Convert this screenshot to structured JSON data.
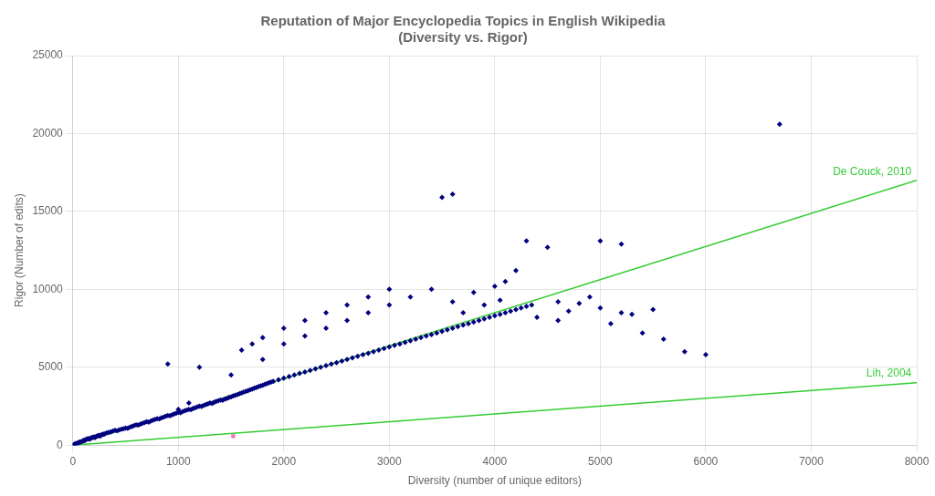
{
  "chart_data": {
    "type": "scatter",
    "title": "Reputation of Major Encyclopedia Topics in English Wikipedia\n(Diversity vs. Rigor)",
    "xlabel": "Diversity (number of unique editors)",
    "ylabel": "Rigor (Number of edits)",
    "xlim": [
      0,
      8000
    ],
    "ylim": [
      0,
      25000
    ],
    "xticks": [
      0,
      1000,
      2000,
      3000,
      4000,
      5000,
      6000,
      7000,
      8000
    ],
    "yticks": [
      0,
      5000,
      10000,
      15000,
      20000,
      25000
    ],
    "grid": true,
    "series": [
      {
        "type": "scatter",
        "color": "#000080",
        "marker": "diamond",
        "values": [
          [
            5,
            10
          ],
          [
            8,
            20
          ],
          [
            12,
            30
          ],
          [
            15,
            50
          ],
          [
            20,
            60
          ],
          [
            25,
            80
          ],
          [
            30,
            100
          ],
          [
            35,
            90
          ],
          [
            40,
            120
          ],
          [
            50,
            150
          ],
          [
            55,
            130
          ],
          [
            60,
            180
          ],
          [
            70,
            200
          ],
          [
            80,
            220
          ],
          [
            90,
            250
          ],
          [
            100,
            300
          ],
          [
            110,
            280
          ],
          [
            120,
            350
          ],
          [
            130,
            380
          ],
          [
            140,
            400
          ],
          [
            150,
            420
          ],
          [
            160,
            380
          ],
          [
            170,
            450
          ],
          [
            180,
            480
          ],
          [
            190,
            500
          ],
          [
            200,
            520
          ],
          [
            210,
            480
          ],
          [
            220,
            550
          ],
          [
            230,
            580
          ],
          [
            240,
            600
          ],
          [
            250,
            620
          ],
          [
            260,
            580
          ],
          [
            270,
            650
          ],
          [
            280,
            680
          ],
          [
            290,
            700
          ],
          [
            300,
            720
          ],
          [
            320,
            780
          ],
          [
            340,
            820
          ],
          [
            360,
            850
          ],
          [
            380,
            900
          ],
          [
            400,
            950
          ],
          [
            420,
            920
          ],
          [
            440,
            980
          ],
          [
            460,
            1020
          ],
          [
            480,
            1050
          ],
          [
            500,
            1100
          ],
          [
            520,
            1080
          ],
          [
            540,
            1150
          ],
          [
            560,
            1200
          ],
          [
            580,
            1250
          ],
          [
            600,
            1300
          ],
          [
            620,
            1280
          ],
          [
            640,
            1350
          ],
          [
            660,
            1400
          ],
          [
            680,
            1450
          ],
          [
            700,
            1500
          ],
          [
            720,
            1480
          ],
          [
            740,
            1550
          ],
          [
            760,
            1600
          ],
          [
            780,
            1650
          ],
          [
            800,
            1700
          ],
          [
            820,
            1680
          ],
          [
            840,
            1750
          ],
          [
            860,
            1800
          ],
          [
            880,
            1850
          ],
          [
            900,
            1900
          ],
          [
            920,
            1880
          ],
          [
            940,
            1950
          ],
          [
            960,
            2000
          ],
          [
            980,
            2050
          ],
          [
            1000,
            2100
          ],
          [
            1020,
            2080
          ],
          [
            1040,
            2150
          ],
          [
            1060,
            2200
          ],
          [
            1080,
            2250
          ],
          [
            1100,
            2300
          ],
          [
            1120,
            2280
          ],
          [
            1140,
            2350
          ],
          [
            1160,
            2400
          ],
          [
            1180,
            2450
          ],
          [
            1200,
            2500
          ],
          [
            1220,
            2480
          ],
          [
            1240,
            2550
          ],
          [
            1260,
            2600
          ],
          [
            1280,
            2650
          ],
          [
            1300,
            2700
          ],
          [
            1320,
            2680
          ],
          [
            1340,
            2750
          ],
          [
            1360,
            2800
          ],
          [
            1380,
            2850
          ],
          [
            1400,
            2900
          ],
          [
            1420,
            2880
          ],
          [
            1440,
            2950
          ],
          [
            1460,
            3000
          ],
          [
            1480,
            3050
          ],
          [
            1500,
            3100
          ],
          [
            1520,
            3150
          ],
          [
            1540,
            3200
          ],
          [
            1560,
            3250
          ],
          [
            1580,
            3300
          ],
          [
            1600,
            3350
          ],
          [
            1620,
            3400
          ],
          [
            1640,
            3450
          ],
          [
            1660,
            3500
          ],
          [
            1680,
            3550
          ],
          [
            1700,
            3600
          ],
          [
            1720,
            3650
          ],
          [
            1740,
            3700
          ],
          [
            1760,
            3750
          ],
          [
            1780,
            3800
          ],
          [
            1800,
            3850
          ],
          [
            1820,
            3900
          ],
          [
            1840,
            3950
          ],
          [
            1860,
            4000
          ],
          [
            1880,
            4050
          ],
          [
            1900,
            4100
          ],
          [
            1950,
            4200
          ],
          [
            2000,
            4300
          ],
          [
            2050,
            4400
          ],
          [
            2100,
            4500
          ],
          [
            2150,
            4600
          ],
          [
            2200,
            4700
          ],
          [
            2250,
            4800
          ],
          [
            2300,
            4900
          ],
          [
            2350,
            5000
          ],
          [
            2400,
            5100
          ],
          [
            2450,
            5200
          ],
          [
            2500,
            5300
          ],
          [
            2550,
            5400
          ],
          [
            2600,
            5500
          ],
          [
            2650,
            5600
          ],
          [
            2700,
            5700
          ],
          [
            2750,
            5800
          ],
          [
            2800,
            5900
          ],
          [
            2850,
            6000
          ],
          [
            2900,
            6100
          ],
          [
            2950,
            6200
          ],
          [
            3000,
            6300
          ],
          [
            3050,
            6400
          ],
          [
            3100,
            6500
          ],
          [
            3150,
            6600
          ],
          [
            3200,
            6700
          ],
          [
            3250,
            6800
          ],
          [
            3300,
            6900
          ],
          [
            3350,
            7000
          ],
          [
            3400,
            7100
          ],
          [
            3450,
            7200
          ],
          [
            3500,
            7300
          ],
          [
            3550,
            7400
          ],
          [
            3600,
            7500
          ],
          [
            3650,
            7600
          ],
          [
            3700,
            7700
          ],
          [
            3750,
            7800
          ],
          [
            3800,
            7900
          ],
          [
            3850,
            8000
          ],
          [
            3900,
            8100
          ],
          [
            3950,
            8200
          ],
          [
            4000,
            8300
          ],
          [
            4050,
            8400
          ],
          [
            4100,
            8500
          ],
          [
            4150,
            8600
          ],
          [
            4200,
            8700
          ],
          [
            4250,
            8800
          ],
          [
            4300,
            8900
          ],
          [
            4350,
            9000
          ],
          [
            1200,
            5000
          ],
          [
            1500,
            4500
          ],
          [
            1800,
            5500
          ],
          [
            2000,
            6500
          ],
          [
            2200,
            7000
          ],
          [
            2400,
            7500
          ],
          [
            2600,
            8000
          ],
          [
            2800,
            8500
          ],
          [
            3000,
            9000
          ],
          [
            3200,
            9500
          ],
          [
            3400,
            10000
          ],
          [
            3600,
            9200
          ],
          [
            3800,
            9800
          ],
          [
            4000,
            10200
          ],
          [
            4100,
            10500
          ],
          [
            4200,
            11200
          ],
          [
            3500,
            15900
          ],
          [
            3600,
            16100
          ],
          [
            4300,
            13100
          ],
          [
            4500,
            12700
          ],
          [
            5000,
            13100
          ],
          [
            5200,
            12900
          ],
          [
            6700,
            20600
          ],
          [
            900,
            5200
          ],
          [
            1600,
            6100
          ],
          [
            1700,
            6500
          ],
          [
            1800,
            6900
          ],
          [
            2000,
            7500
          ],
          [
            2200,
            8000
          ],
          [
            2400,
            8500
          ],
          [
            2600,
            9000
          ],
          [
            2800,
            9500
          ],
          [
            3000,
            10000
          ],
          [
            1100,
            2700
          ],
          [
            1000,
            2300
          ],
          [
            3700,
            8500
          ],
          [
            3900,
            9000
          ],
          [
            4050,
            9300
          ],
          [
            4600,
            9200
          ],
          [
            4800,
            9100
          ],
          [
            5000,
            8800
          ],
          [
            5200,
            8500
          ],
          [
            5500,
            8700
          ],
          [
            5300,
            8400
          ],
          [
            4400,
            8200
          ],
          [
            4600,
            8000
          ],
          [
            4700,
            8600
          ],
          [
            5100,
            7800
          ],
          [
            5400,
            7200
          ],
          [
            5600,
            6800
          ],
          [
            4900,
            9500
          ],
          [
            5800,
            6000
          ],
          [
            6000,
            5800
          ]
        ]
      },
      {
        "type": "scatter",
        "color": "#CCCC00",
        "marker": "diamond",
        "values": [
          [
            1480,
            3100
          ]
        ]
      },
      {
        "type": "scatter",
        "color": "#FF69B4",
        "marker": "square",
        "values": [
          [
            1520,
            580
          ]
        ]
      },
      {
        "type": "line",
        "color": "#33CC33",
        "line_style": "solid",
        "values": [
          [
            0,
            0
          ],
          [
            8000,
            17000
          ]
        ]
      },
      {
        "type": "line",
        "color": "#33CC33",
        "line_style": "solid",
        "values": [
          [
            0,
            0
          ],
          [
            8000,
            4000
          ]
        ]
      }
    ],
    "annotations": [
      {
        "text": "De Couck, 2010",
        "x": 7950,
        "y": 16893.75,
        "color": "#33CC33"
      },
      {
        "text": "Lih, 2004",
        "x": 7950,
        "y": 3975,
        "color": "#33CC33"
      }
    ]
  }
}
